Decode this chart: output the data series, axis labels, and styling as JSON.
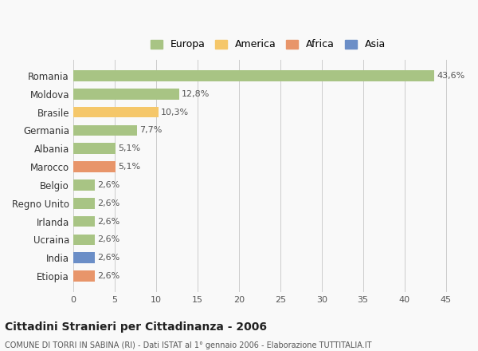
{
  "categories": [
    "Romania",
    "Moldova",
    "Brasile",
    "Germania",
    "Albania",
    "Marocco",
    "Belgio",
    "Regno Unito",
    "Irlanda",
    "Ucraina",
    "India",
    "Etiopia"
  ],
  "values": [
    43.6,
    12.8,
    10.3,
    7.7,
    5.1,
    5.1,
    2.6,
    2.6,
    2.6,
    2.6,
    2.6,
    2.6
  ],
  "labels": [
    "43,6%",
    "12,8%",
    "10,3%",
    "7,7%",
    "5,1%",
    "5,1%",
    "2,6%",
    "2,6%",
    "2,6%",
    "2,6%",
    "2,6%",
    "2,6%"
  ],
  "colors": [
    "#a8c484",
    "#a8c484",
    "#f5c76a",
    "#a8c484",
    "#a8c484",
    "#e8956a",
    "#a8c484",
    "#a8c484",
    "#a8c484",
    "#a8c484",
    "#6b8ec7",
    "#e8956a"
  ],
  "legend": [
    {
      "label": "Europa",
      "color": "#a8c484"
    },
    {
      "label": "America",
      "color": "#f5c76a"
    },
    {
      "label": "Africa",
      "color": "#e8956a"
    },
    {
      "label": "Asia",
      "color": "#6b8ec7"
    }
  ],
  "xlim": [
    0,
    47
  ],
  "xticks": [
    0,
    5,
    10,
    15,
    20,
    25,
    30,
    35,
    40,
    45
  ],
  "title": "Cittadini Stranieri per Cittadinanza - 2006",
  "subtitle": "COMUNE DI TORRI IN SABINA (RI) - Dati ISTAT al 1° gennaio 2006 - Elaborazione TUTTITALIA.IT",
  "background_color": "#f9f9f9",
  "grid_color": "#cccccc",
  "bar_height": 0.6
}
